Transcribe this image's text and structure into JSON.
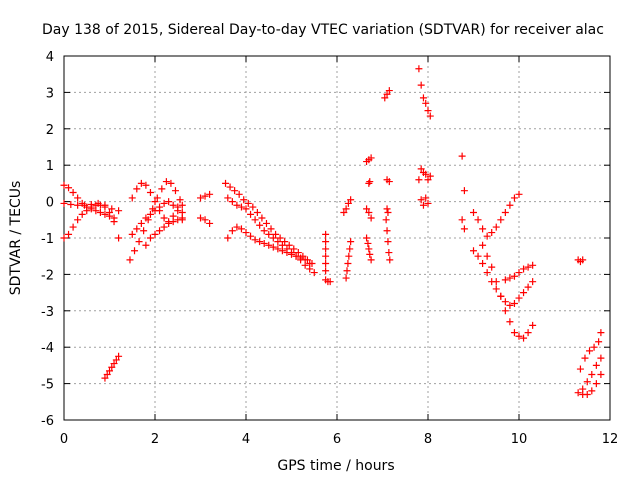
{
  "chart_data": {
    "type": "scatter",
    "title": "Day 138 of 2015, Sidereal Day-to-day VTEC variation (SDTVAR) for receiver alac",
    "xlabel": "GPS time / hours",
    "ylabel": "SDTVAR / TECUs",
    "xlim": [
      0,
      12
    ],
    "ylim": [
      -6,
      4
    ],
    "xticks": [
      "0",
      "2",
      "4",
      "6",
      "8",
      "10",
      "12"
    ],
    "yticks": [
      "-6",
      "-5",
      "-4",
      "-3",
      "-2",
      "-1",
      "0",
      "1",
      "2",
      "3",
      "4"
    ],
    "grid": true,
    "marker": "+",
    "color": "#ff0000",
    "series": [
      {
        "name": "s1",
        "x": [
          0.0,
          0.1,
          0.2,
          0.3,
          0.4,
          0.5,
          0.6,
          0.7,
          0.8,
          0.9,
          1.0,
          1.1,
          1.2
        ],
        "y": [
          -1.0,
          -0.9,
          -0.7,
          -0.5,
          -0.35,
          -0.25,
          -0.15,
          -0.1,
          -0.1,
          -0.15,
          -0.3,
          -0.55,
          -1.0
        ]
      },
      {
        "name": "s2",
        "x": [
          0.0,
          0.1,
          0.2,
          0.3,
          0.4,
          0.5,
          0.6,
          0.7,
          0.8,
          0.9,
          1.0,
          1.1
        ],
        "y": [
          0.45,
          0.38,
          0.25,
          0.1,
          -0.05,
          -0.15,
          -0.2,
          -0.25,
          -0.3,
          -0.35,
          -0.4,
          -0.45
        ]
      },
      {
        "name": "s3",
        "x": [
          0.0,
          0.15,
          0.3,
          0.45,
          0.6,
          0.75,
          0.9,
          1.05,
          1.2
        ],
        "y": [
          -0.05,
          -0.08,
          -0.1,
          -0.1,
          -0.08,
          -0.05,
          -0.1,
          -0.2,
          -0.25
        ]
      },
      {
        "name": "s4",
        "x": [
          0.9,
          0.95,
          1.0,
          1.05,
          1.1,
          1.15,
          1.2
        ],
        "y": [
          -4.85,
          -4.75,
          -4.65,
          -4.55,
          -4.45,
          -4.35,
          -4.25
        ]
      },
      {
        "name": "s5",
        "x": [
          1.45,
          1.55,
          1.65,
          1.75,
          1.85,
          1.95,
          2.05,
          2.15,
          2.25,
          2.35,
          2.45,
          2.55,
          2.6
        ],
        "y": [
          -1.6,
          -1.35,
          -1.1,
          -0.8,
          -0.5,
          -0.2,
          0.1,
          0.35,
          0.55,
          0.5,
          0.3,
          0.05,
          -0.1
        ]
      },
      {
        "name": "s6",
        "x": [
          1.5,
          1.6,
          1.7,
          1.8,
          1.9,
          2.0,
          2.1,
          2.2,
          2.3,
          2.4,
          2.5,
          2.6
        ],
        "y": [
          0.1,
          0.35,
          0.5,
          0.45,
          0.25,
          0.0,
          -0.25,
          -0.45,
          -0.55,
          -0.4,
          -0.15,
          -0.3
        ]
      },
      {
        "name": "s7",
        "x": [
          1.5,
          1.6,
          1.7,
          1.8,
          1.9,
          2.0,
          2.1,
          2.2,
          2.3,
          2.4,
          2.5,
          2.6
        ],
        "y": [
          -0.9,
          -0.75,
          -0.6,
          -0.45,
          -0.35,
          -0.25,
          -0.15,
          -0.05,
          0.0,
          -0.1,
          -0.25,
          -0.5
        ]
      },
      {
        "name": "s8",
        "x": [
          1.8,
          1.9,
          2.0,
          2.1,
          2.2,
          2.3,
          2.4,
          2.5,
          2.6
        ],
        "y": [
          -1.2,
          -1.0,
          -0.9,
          -0.8,
          -0.7,
          -0.6,
          -0.55,
          -0.5,
          -0.45
        ]
      },
      {
        "name": "s9",
        "x": [
          3.0,
          3.1,
          3.2
        ],
        "y": [
          0.1,
          0.15,
          0.2
        ]
      },
      {
        "name": "s10",
        "x": [
          3.0,
          3.1,
          3.2
        ],
        "y": [
          -0.45,
          -0.5,
          -0.6
        ]
      },
      {
        "name": "s11",
        "x": [
          3.55,
          3.65,
          3.75,
          3.85,
          3.95,
          4.05,
          4.15,
          4.25,
          4.35,
          4.45,
          4.55,
          4.65,
          4.75,
          4.85,
          4.95,
          5.05,
          5.15,
          5.25,
          5.35,
          5.45
        ],
        "y": [
          0.5,
          0.4,
          0.3,
          0.2,
          0.05,
          -0.05,
          -0.15,
          -0.3,
          -0.45,
          -0.6,
          -0.75,
          -0.9,
          -1.0,
          -1.1,
          -1.2,
          -1.3,
          -1.4,
          -1.5,
          -1.6,
          -1.7
        ]
      },
      {
        "name": "s12",
        "x": [
          3.6,
          3.7,
          3.8,
          3.9,
          4.0,
          4.1,
          4.2,
          4.3,
          4.4,
          4.5,
          4.6,
          4.7,
          4.8,
          4.9,
          5.0,
          5.1,
          5.2,
          5.3,
          5.4,
          5.5
        ],
        "y": [
          0.1,
          0.0,
          -0.1,
          -0.15,
          -0.2,
          -0.35,
          -0.5,
          -0.65,
          -0.8,
          -0.9,
          -1.0,
          -1.1,
          -1.2,
          -1.3,
          -1.4,
          -1.5,
          -1.6,
          -1.75,
          -1.85,
          -1.95
        ]
      },
      {
        "name": "s13",
        "x": [
          3.6,
          3.7,
          3.8,
          3.9,
          4.0,
          4.1,
          4.2,
          4.3,
          4.4,
          4.5,
          4.6,
          4.7,
          4.8,
          4.9,
          5.0,
          5.1,
          5.2,
          5.3,
          5.4
        ],
        "y": [
          -1.0,
          -0.8,
          -0.7,
          -0.75,
          -0.85,
          -0.95,
          -1.05,
          -1.1,
          -1.15,
          -1.2,
          -1.25,
          -1.3,
          -1.35,
          -1.4,
          -1.45,
          -1.5,
          -1.55,
          -1.6,
          -1.7
        ]
      },
      {
        "name": "s14",
        "x": [
          5.75,
          5.75,
          5.75,
          5.75,
          5.75,
          5.75,
          5.75,
          5.8,
          5.85
        ],
        "y": [
          -0.9,
          -1.1,
          -1.3,
          -1.5,
          -1.7,
          -1.9,
          -2.15,
          -2.2,
          -2.2
        ]
      },
      {
        "name": "s15",
        "x": [
          6.15,
          6.2,
          6.25,
          6.3
        ],
        "y": [
          -0.3,
          -0.2,
          -0.05,
          0.05
        ]
      },
      {
        "name": "s16",
        "x": [
          6.2,
          6.22,
          6.24,
          6.26,
          6.28,
          6.3
        ],
        "y": [
          -2.1,
          -1.9,
          -1.7,
          -1.5,
          -1.3,
          -1.1
        ]
      },
      {
        "name": "s17",
        "x": [
          6.65,
          6.7,
          6.75,
          6.65,
          6.7,
          6.75
        ],
        "y": [
          1.1,
          1.15,
          1.2,
          -0.2,
          -0.3,
          -0.45
        ]
      },
      {
        "name": "s18",
        "x": [
          6.65,
          6.68,
          6.7,
          6.72,
          6.75,
          6.7,
          6.72
        ],
        "y": [
          -1.0,
          -1.15,
          -1.3,
          -1.45,
          -1.6,
          0.5,
          0.55
        ]
      },
      {
        "name": "s19",
        "x": [
          7.05,
          7.1,
          7.15,
          7.1,
          7.15
        ],
        "y": [
          2.85,
          2.95,
          3.05,
          0.6,
          0.55
        ]
      },
      {
        "name": "s20",
        "x": [
          7.08,
          7.1,
          7.12,
          7.14,
          7.16,
          7.1,
          7.12
        ],
        "y": [
          -0.5,
          -0.8,
          -1.1,
          -1.4,
          -1.6,
          -0.2,
          -0.3
        ]
      },
      {
        "name": "s21",
        "x": [
          7.8,
          7.85,
          7.9,
          7.95,
          8.0,
          8.05
        ],
        "y": [
          3.65,
          3.2,
          2.85,
          2.7,
          2.5,
          2.35
        ]
      },
      {
        "name": "s22",
        "x": [
          7.8,
          7.85,
          7.9,
          7.95,
          8.0,
          8.05,
          7.85,
          7.9,
          7.95,
          8.0
        ],
        "y": [
          0.6,
          0.9,
          0.8,
          0.75,
          0.6,
          0.7,
          0.05,
          -0.1,
          0.1,
          -0.05
        ]
      },
      {
        "name": "s23",
        "x": [
          8.75,
          8.8,
          8.75,
          8.8
        ],
        "y": [
          1.25,
          0.3,
          -0.5,
          -0.75
        ]
      },
      {
        "name": "s24",
        "x": [
          9.0,
          9.1,
          9.2,
          9.3,
          9.4,
          9.5,
          9.6,
          9.7,
          9.8,
          9.9,
          10.0,
          10.1,
          10.2,
          10.3
        ],
        "y": [
          -1.35,
          -1.5,
          -1.7,
          -1.95,
          -2.2,
          -2.4,
          -2.6,
          -2.75,
          -2.85,
          -2.8,
          -2.65,
          -2.5,
          -2.35,
          -2.2
        ]
      },
      {
        "name": "s25",
        "x": [
          9.0,
          9.1,
          9.2,
          9.3,
          9.4,
          9.5,
          9.6,
          9.7,
          9.8,
          9.9,
          10.0
        ],
        "y": [
          -0.3,
          -0.5,
          -0.75,
          -0.95,
          -0.85,
          -0.7,
          -0.5,
          -0.3,
          -0.1,
          0.1,
          0.2
        ]
      },
      {
        "name": "s26",
        "x": [
          9.2,
          9.3,
          9.4,
          9.5,
          9.6,
          9.7,
          9.8,
          9.9,
          10.0,
          10.1,
          10.2,
          10.3
        ],
        "y": [
          -1.2,
          -1.5,
          -1.8,
          -2.2,
          -2.6,
          -3.0,
          -3.3,
          -3.6,
          -3.7,
          -3.75,
          -3.6,
          -3.4
        ]
      },
      {
        "name": "s27",
        "x": [
          9.7,
          9.8,
          9.9,
          10.0,
          10.1,
          10.2,
          10.3
        ],
        "y": [
          -2.15,
          -2.1,
          -2.05,
          -1.95,
          -1.85,
          -1.8,
          -1.75
        ]
      },
      {
        "name": "s28",
        "x": [
          11.3,
          11.35,
          11.4
        ],
        "y": [
          -1.6,
          -1.65,
          -1.6
        ]
      },
      {
        "name": "s29",
        "x": [
          11.3,
          11.4,
          11.5,
          11.6,
          11.7,
          11.8
        ],
        "y": [
          -5.25,
          -5.3,
          -5.3,
          -5.2,
          -5.0,
          -4.75
        ]
      },
      {
        "name": "s30",
        "x": [
          11.35,
          11.45,
          11.55,
          11.65,
          11.75,
          11.8
        ],
        "y": [
          -4.6,
          -4.3,
          -4.1,
          -4.0,
          -3.85,
          -3.6
        ]
      },
      {
        "name": "s31",
        "x": [
          11.4,
          11.5,
          11.6,
          11.7,
          11.8
        ],
        "y": [
          -5.15,
          -4.95,
          -4.75,
          -4.5,
          -4.3
        ]
      }
    ]
  }
}
